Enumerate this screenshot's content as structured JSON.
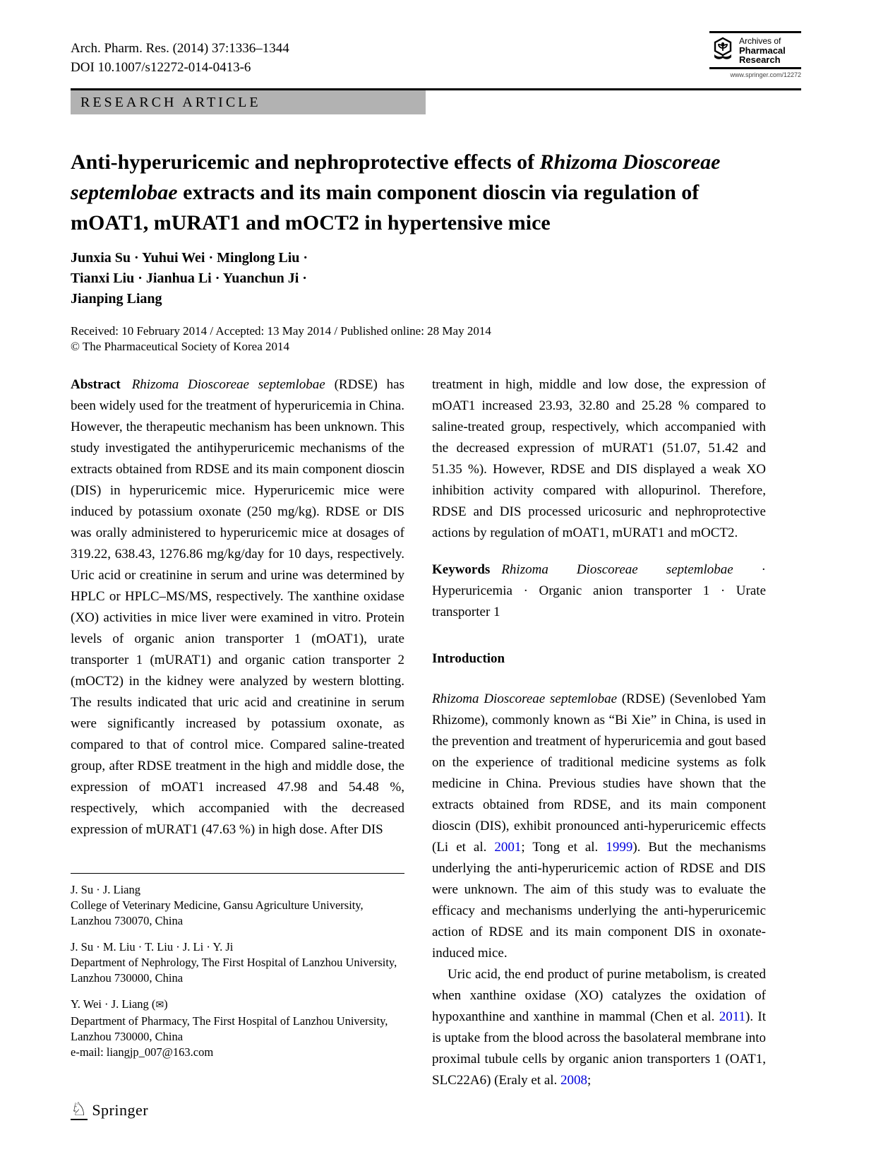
{
  "colors": {
    "citation": "#0000dd",
    "banner_gray": "#b2b2b2"
  },
  "header": {
    "journal_ref": "Arch. Pharm. Res. (2014) 37:1336–1344",
    "doi": "DOI 10.1007/s12272-014-0413-6",
    "article_type": "RESEARCH ARTICLE"
  },
  "logo": {
    "line1": "Archives of",
    "line2": "Pharmacal",
    "line3": "Research",
    "url": "www.springer.com/12272"
  },
  "title": {
    "segments": [
      {
        "t": "Anti-hyperuricemic and nephroprotective effects of "
      },
      {
        "t": "Rhizoma Dioscoreae septemlobae",
        "s": "i"
      },
      {
        "t": " extracts and its main component dioscin via regulation of mOAT1, mURAT1 and mOCT2 in hypertensive mice"
      }
    ]
  },
  "authors": {
    "lines": [
      "Junxia Su · Yuhui Wei · Minglong Liu ·",
      "Tianxi Liu · Jianhua Li · Yuanchun Ji ·",
      "Jianping Liang"
    ]
  },
  "dates": {
    "received": "Received: 10 February 2014 / Accepted: 13 May 2014 / Published online: 28 May 2014",
    "copyright": "© The Pharmaceutical Society of Korea 2014"
  },
  "abstract": {
    "segments": [
      {
        "t": "Abstract",
        "s": "b"
      },
      {
        "t": "Rhizoma Dioscoreae septemlobae",
        "s": "i"
      },
      {
        "t": " (RDSE) has been widely used for the treatment of hyperuricemia in China. However, the therapeutic mechanism has been unknown. This study investigated the antihyperuricemic mechanisms of the extracts obtained from RDSE and its main component dioscin (DIS) in hyperuricemic mice. Hyperuricemic mice were induced by potassium oxonate (250 mg/kg). RDSE or DIS was orally administered to hyperuricemic mice at dosages of 319.22, 638.43, 1276.86 mg/kg/day for 10 days, respectively. Uric acid or creatinine in serum and urine was determined by HPLC or HPLC–MS/MS, respectively. The xanthine oxidase (XO) activities in mice liver were examined in vitro. Protein levels of organic anion transporter 1 (mOAT1), urate transporter 1 (mURAT1) and organic cation transporter 2 (mOCT2) in the kidney were analyzed by western blotting. The results indicated that uric acid and creatinine in serum were significantly increased by potassium oxonate, as compared to that of control mice. Compared saline-treated group, after RDSE treatment in the high and middle dose, the expression of mOAT1 increased 47.98 and 54.48 %, respectively, which accompanied with the decreased expression of mURAT1 (47.63 %) in high dose. After DIS"
      }
    ]
  },
  "abstract_continuation": {
    "text": "treatment in high, middle and low dose, the expression of mOAT1 increased 23.93, 32.80 and 25.28 % compared to saline-treated group, respectively, which accompanied with the decreased expression of mURAT1 (51.07, 51.42 and 51.35 %). However, RDSE and DIS displayed a weak XO inhibition activity compared with allopurinol. Therefore, RDSE and DIS processed uricosuric and nephroprotective actions by regulation of mOAT1, mURAT1 and mOCT2."
  },
  "keywords": {
    "segments": [
      {
        "t": "Keywords",
        "s": "b"
      },
      {
        "t": "Rhizoma Dioscoreae septemlobae",
        "s": "i"
      },
      {
        "t": " · Hyperuricemia · Organic anion transporter 1 · Urate transporter 1"
      }
    ]
  },
  "introduction": {
    "heading": "Introduction",
    "p1": {
      "segments": [
        {
          "t": "Rhizoma Dioscoreae septemlobae",
          "s": "i"
        },
        {
          "t": " (RDSE) (Sevenlobed Yam Rhizome), commonly known as “Bi Xie” in China, is used in the prevention and treatment of hyperuricemia and gout based on the experience of traditional medicine systems as folk medicine in China. Previous studies have shown that the extracts obtained from RDSE, and its main component dioscin (DIS), exhibit pronounced anti-hyperuricemic effects (Li et al. "
        },
        {
          "t": "2001",
          "s": "link"
        },
        {
          "t": "; Tong et al. "
        },
        {
          "t": "1999",
          "s": "link"
        },
        {
          "t": "). But the mechanisms underlying the anti-hyperuricemic action of RDSE and DIS were unknown. The aim of this study was to evaluate the efficacy and mechanisms underlying the anti-hyperuricemic action of RDSE and its main component DIS in oxonate-induced mice."
        }
      ]
    },
    "p2": {
      "segments": [
        {
          "t": "Uric acid, the end product of purine metabolism, is created when xanthine oxidase (XO) catalyzes the oxidation of hypoxanthine and xanthine in mammal (Chen et al. "
        },
        {
          "t": "2011",
          "s": "link"
        },
        {
          "t": "). It is uptake from the blood across the basolateral membrane into proximal tubule cells by organic anion transporters 1 (OAT1, SLC22A6) (Eraly et al. "
        },
        {
          "t": "2008",
          "s": "link"
        },
        {
          "t": ";"
        }
      ]
    }
  },
  "footnotes": {
    "fn1": {
      "names": "J. Su · J. Liang",
      "affiliation": "College of Veterinary Medicine, Gansu Agriculture University, Lanzhou 730070, China"
    },
    "fn2": {
      "names": "J. Su · M. Liu · T. Liu · J. Li · Y. Ji",
      "affiliation": "Department of Nephrology, The First Hospital of Lanzhou University, Lanzhou 730000, China"
    },
    "fn3": {
      "names": "Y. Wei · J. Liang (",
      "corresponding_icon": "✉",
      "names_close": ")",
      "affiliation": "Department of Pharmacy, The First Hospital of Lanzhou University, Lanzhou 730000, China",
      "email_label": "e-mail: ",
      "email": "liangjp_007@163.com"
    }
  },
  "footer": {
    "publisher": "Springer",
    "logo_glyph": "♘"
  }
}
